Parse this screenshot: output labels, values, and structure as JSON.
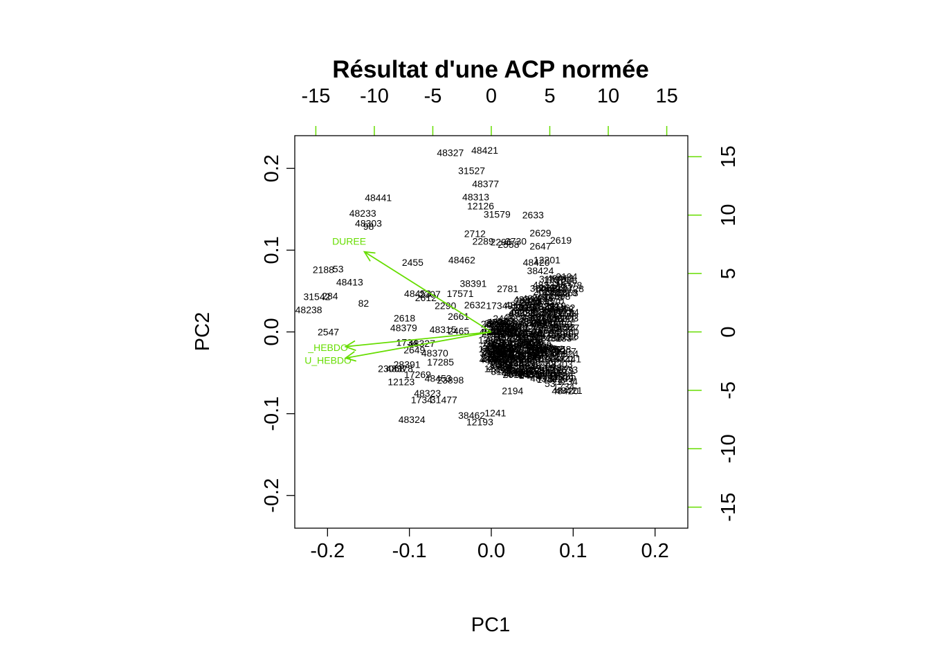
{
  "chart_data": {
    "type": "scatter",
    "subtype": "biplot",
    "title": "Résultat d'une ACP normée",
    "xlabel": "PC1",
    "ylabel": "PC2",
    "xlim": [
      -0.24,
      0.24
    ],
    "ylim": [
      -0.24,
      0.24
    ],
    "bottom_ticks": [
      "-0.2",
      "-0.1",
      "0.0",
      "0.1",
      "0.2"
    ],
    "left_ticks": [
      "-0.2",
      "-0.1",
      "0.0",
      "0.1",
      "0.2"
    ],
    "secondary_scale": {
      "top_ticks": [
        "-15",
        "-10",
        "-5",
        "0",
        "5",
        "10",
        "15"
      ],
      "right_ticks": [
        "-15",
        "-10",
        "-5",
        "0",
        "5",
        "10",
        "15"
      ],
      "units_per_primary_unit": 70,
      "color": "#66dd00"
    },
    "variables": [
      {
        "name": "DUREE",
        "x": -0.155,
        "y": 0.098
      },
      {
        "name": "_HEBDO",
        "x": -0.178,
        "y": -0.018
      },
      {
        "name": "U_HEBDO",
        "x": -0.178,
        "y": -0.032
      }
    ],
    "variable_color": "#66dd00",
    "label_color": "#000000",
    "points": [
      {
        "label": "48327",
        "x": -0.05,
        "y": 0.218
      },
      {
        "label": "48421",
        "x": -0.008,
        "y": 0.221
      },
      {
        "label": "31527",
        "x": -0.024,
        "y": 0.196
      },
      {
        "label": "48377",
        "x": -0.007,
        "y": 0.18
      },
      {
        "label": "48441",
        "x": -0.138,
        "y": 0.163
      },
      {
        "label": "48313",
        "x": -0.019,
        "y": 0.164
      },
      {
        "label": "48233",
        "x": -0.157,
        "y": 0.144
      },
      {
        "label": "12126",
        "x": -0.013,
        "y": 0.153
      },
      {
        "label": "31579",
        "x": 0.007,
        "y": 0.143
      },
      {
        "label": "2633",
        "x": 0.051,
        "y": 0.142
      },
      {
        "label": "48303",
        "x": -0.15,
        "y": 0.132
      },
      {
        "label": "98",
        "x": -0.15,
        "y": 0.128
      },
      {
        "label": "2712",
        "x": -0.02,
        "y": 0.119
      },
      {
        "label": "2629",
        "x": 0.06,
        "y": 0.12
      },
      {
        "label": "2619",
        "x": 0.085,
        "y": 0.111
      },
      {
        "label": "2289",
        "x": -0.01,
        "y": 0.11
      },
      {
        "label": "2296",
        "x": 0.012,
        "y": 0.109
      },
      {
        "label": "2730",
        "x": 0.03,
        "y": 0.11
      },
      {
        "label": "2558",
        "x": 0.021,
        "y": 0.106
      },
      {
        "label": "2647",
        "x": 0.06,
        "y": 0.104
      },
      {
        "label": "2455",
        "x": -0.096,
        "y": 0.084
      },
      {
        "label": "48462",
        "x": -0.036,
        "y": 0.087
      },
      {
        "label": "12201",
        "x": 0.068,
        "y": 0.087
      },
      {
        "label": "48420",
        "x": 0.055,
        "y": 0.084
      },
      {
        "label": "2188",
        "x": -0.205,
        "y": 0.075
      },
      {
        "label": "53",
        "x": -0.187,
        "y": 0.076
      },
      {
        "label": "38424",
        "x": 0.06,
        "y": 0.074
      },
      {
        "label": "48413",
        "x": -0.173,
        "y": 0.06
      },
      {
        "label": "38391",
        "x": -0.022,
        "y": 0.058
      },
      {
        "label": "17571",
        "x": -0.038,
        "y": 0.046
      },
      {
        "label": "48453",
        "x": -0.09,
        "y": 0.046
      },
      {
        "label": "2307",
        "x": -0.075,
        "y": 0.045
      },
      {
        "label": "2612",
        "x": -0.08,
        "y": 0.041
      },
      {
        "label": "2781",
        "x": 0.02,
        "y": 0.052
      },
      {
        "label": "31542",
        "x": -0.213,
        "y": 0.042
      },
      {
        "label": "284",
        "x": -0.197,
        "y": 0.043
      },
      {
        "label": "82",
        "x": -0.156,
        "y": 0.034
      },
      {
        "label": "2290",
        "x": -0.056,
        "y": 0.031
      },
      {
        "label": "2632",
        "x": -0.02,
        "y": 0.032
      },
      {
        "label": "17349",
        "x": 0.01,
        "y": 0.031
      },
      {
        "label": "48238",
        "x": -0.223,
        "y": 0.026
      },
      {
        "label": "2618",
        "x": -0.106,
        "y": 0.016
      },
      {
        "label": "2661",
        "x": -0.04,
        "y": 0.018
      },
      {
        "label": "48379",
        "x": -0.107,
        "y": 0.004
      },
      {
        "label": "48315",
        "x": -0.059,
        "y": 0.002
      },
      {
        "label": "2465",
        "x": -0.04,
        "y": 0.0
      },
      {
        "label": "2547",
        "x": -0.199,
        "y": -0.001
      },
      {
        "label": "1734",
        "x": -0.103,
        "y": -0.014
      },
      {
        "label": "48327",
        "x": -0.085,
        "y": -0.015
      },
      {
        "label": "2649",
        "x": -0.094,
        "y": -0.023
      },
      {
        "label": "48370",
        "x": -0.069,
        "y": -0.027
      },
      {
        "label": "17285",
        "x": -0.062,
        "y": -0.038
      },
      {
        "label": "23068",
        "x": -0.122,
        "y": -0.046
      },
      {
        "label": "28391",
        "x": -0.103,
        "y": -0.041
      },
      {
        "label": "48378",
        "x": -0.112,
        "y": -0.046
      },
      {
        "label": "17269",
        "x": -0.09,
        "y": -0.053
      },
      {
        "label": "48453",
        "x": -0.065,
        "y": -0.058
      },
      {
        "label": "12123",
        "x": -0.11,
        "y": -0.062
      },
      {
        "label": "23898",
        "x": -0.05,
        "y": -0.06
      },
      {
        "label": "48323",
        "x": -0.078,
        "y": -0.076
      },
      {
        "label": "1734",
        "x": -0.085,
        "y": -0.084
      },
      {
        "label": "31477",
        "x": -0.058,
        "y": -0.084
      },
      {
        "label": "2194",
        "x": 0.026,
        "y": -0.073
      },
      {
        "label": "38462",
        "x": -0.024,
        "y": -0.103
      },
      {
        "label": "48324",
        "x": -0.097,
        "y": -0.108
      },
      {
        "label": "12193",
        "x": -0.014,
        "y": -0.111
      },
      {
        "label": "1241",
        "x": 0.005,
        "y": -0.1
      },
      {
        "label": "2279",
        "x": 0.078,
        "y": 0.031
      },
      {
        "label": "2767",
        "x": 0.087,
        "y": 0.053
      },
      {
        "label": "2728",
        "x": 0.1,
        "y": 0.052
      },
      {
        "label": "2758",
        "x": 0.02,
        "y": 0.012
      },
      {
        "label": "2660",
        "x": 0.06,
        "y": 0.012
      },
      {
        "label": "2070",
        "x": 0.075,
        "y": 0.012
      }
    ],
    "dense_cluster": {
      "x_range": [
        0.0,
        0.095
      ],
      "y_range": [
        -0.095,
        0.06
      ],
      "count": 260
    }
  }
}
